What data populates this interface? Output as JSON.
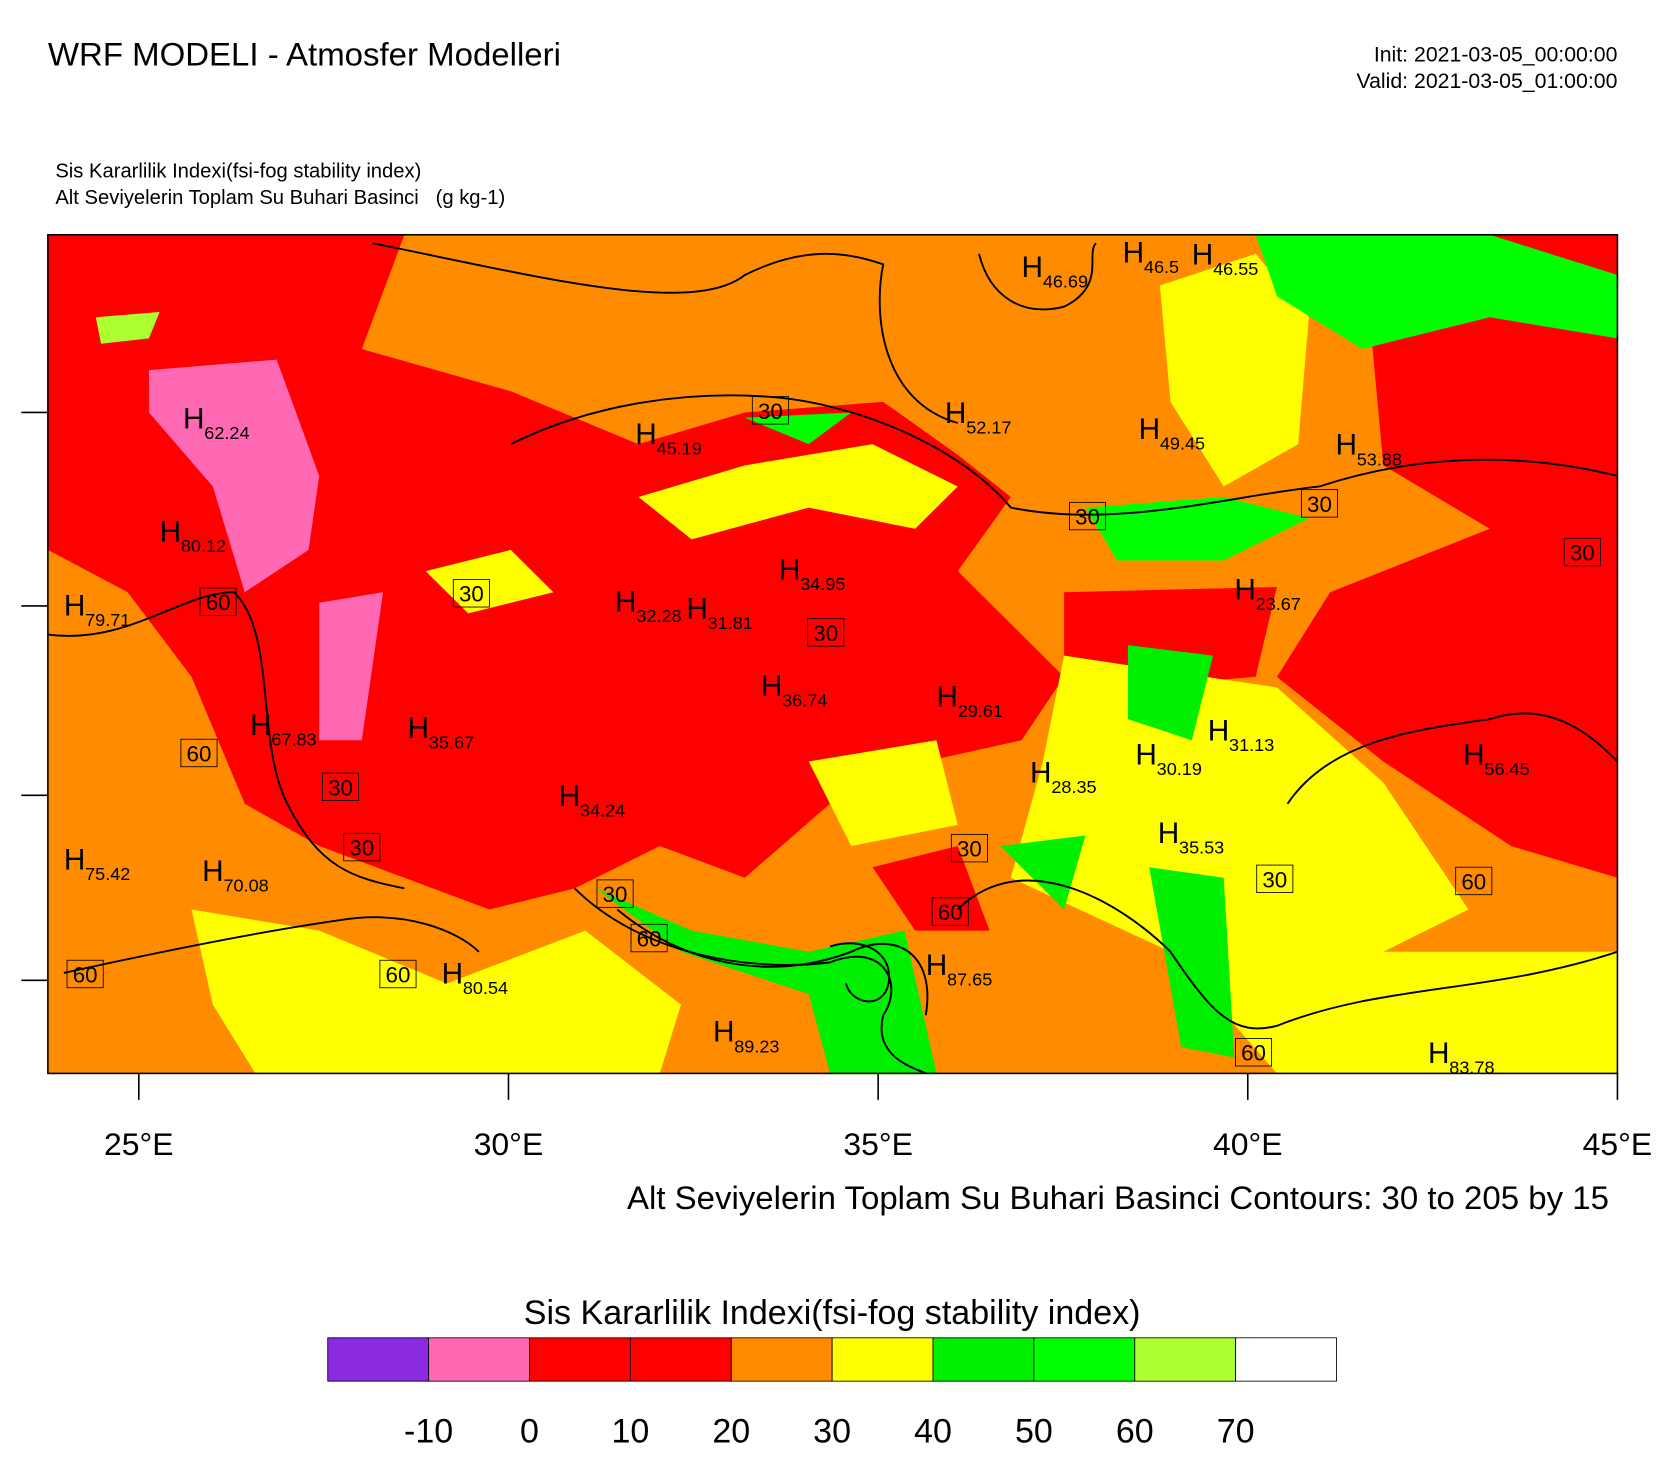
{
  "header": {
    "title": "WRF MODELI - Atmosfer Modelleri",
    "init": "Init: 2021-03-05_00:00:00",
    "valid": "Valid: 2021-03-05_01:00:00",
    "subtitle_1": "Sis Kararlilik Indexi(fsi-fog stability index)",
    "subtitle_2": "Alt Seviyelerin Toplam Su Buhari Basinci   (g kg-1)"
  },
  "map": {
    "xlim": [
      23.77,
      45
    ],
    "xticks": [
      {
        "value": 25,
        "label": "25°E"
      },
      {
        "value": 30,
        "label": "30°E"
      },
      {
        "value": 35,
        "label": "35°E"
      },
      {
        "value": 40,
        "label": "40°E"
      },
      {
        "value": 45,
        "label": "45°E"
      }
    ],
    "highs": [
      {
        "symbol": "H",
        "value": 62.24
      },
      {
        "symbol": "H",
        "value": 45.19
      },
      {
        "symbol": "H",
        "value": 52.17
      },
      {
        "symbol": "H",
        "value": 49.45
      },
      {
        "symbol": "H",
        "value": 53.88
      },
      {
        "symbol": "H",
        "value": 46.69
      },
      {
        "symbol": "H",
        "value": 46.5
      },
      {
        "symbol": "H",
        "value": 46.55
      },
      {
        "symbol": "H",
        "value": 80.12
      },
      {
        "symbol": "H",
        "value": 34.95
      },
      {
        "symbol": "H",
        "value": 79.71
      },
      {
        "symbol": "H",
        "value": 32.28
      },
      {
        "symbol": "H",
        "value": 31.81
      },
      {
        "symbol": "H",
        "value": 23.67
      },
      {
        "symbol": "H",
        "value": 36.74
      },
      {
        "symbol": "H",
        "value": 29.61
      },
      {
        "symbol": "H",
        "value": 67.83
      },
      {
        "symbol": "H",
        "value": 35.67
      },
      {
        "symbol": "H",
        "value": 31.13
      },
      {
        "symbol": "H",
        "value": 30.19
      },
      {
        "symbol": "H",
        "value": 56.45
      },
      {
        "symbol": "H",
        "value": 28.35
      },
      {
        "symbol": "H",
        "value": 34.24
      },
      {
        "symbol": "H",
        "value": 35.53
      },
      {
        "symbol": "H",
        "value": 75.42
      },
      {
        "symbol": "H",
        "value": 70.08
      },
      {
        "symbol": "H",
        "value": 87.65
      },
      {
        "symbol": "H",
        "value": 80.54
      },
      {
        "symbol": "H",
        "value": 89.23
      },
      {
        "symbol": "H",
        "value": 83.78
      }
    ],
    "contour_labels": [
      30,
      30,
      30,
      30,
      30,
      60,
      30,
      60,
      30,
      30,
      30,
      30,
      60,
      30,
      60,
      60,
      60,
      60,
      60
    ],
    "contour_caption": "Alt Seviyelerin Toplam Su Buhari Basinci Contours: 30 to 205 by 15"
  },
  "colorbar": {
    "title": "Sis Kararlilik Indexi(fsi-fog stability index)",
    "colors": [
      "#8a2be2",
      "#ff69b4",
      "#ff0000",
      "#ff0000",
      "#ff8c00",
      "#ffff00",
      "#00ee00",
      "#00ff00",
      "#adff2f",
      "#ffffff"
    ],
    "labels": [
      -10,
      0,
      10,
      20,
      30,
      40,
      50,
      60,
      70
    ]
  }
}
